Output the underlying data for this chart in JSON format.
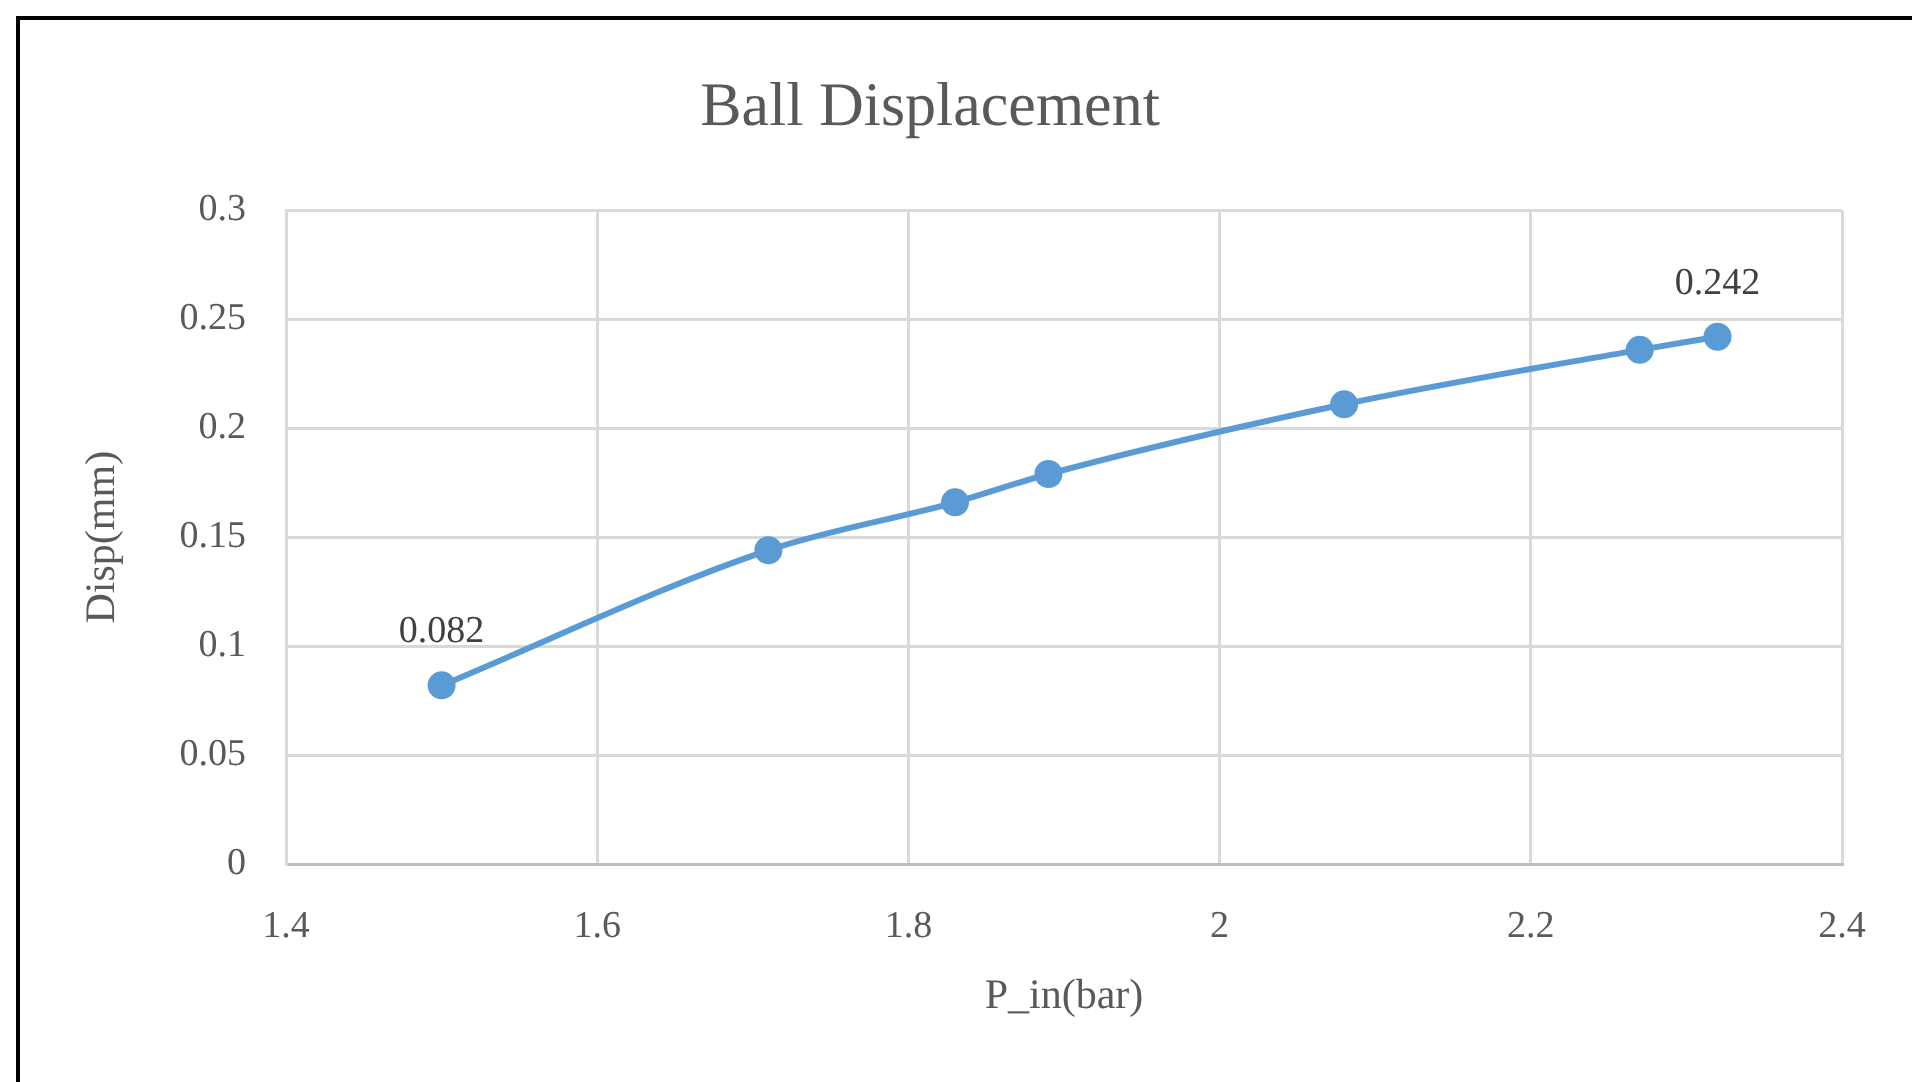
{
  "chart_data": {
    "type": "line",
    "title": "Ball Displacement",
    "xlabel": "P_in(bar)",
    "ylabel": "Disp(mm)",
    "x": [
      1.5,
      1.71,
      1.83,
      1.89,
      2.08,
      2.27,
      2.32
    ],
    "series": [
      {
        "color": "#5b9bd5",
        "values": [
          0.082,
          0.144,
          0.166,
          0.179,
          0.211,
          0.236,
          0.242
        ],
        "value_labels": [
          "0.082",
          null,
          null,
          null,
          null,
          null,
          "0.242"
        ]
      }
    ],
    "xlim": [
      1.4,
      2.4
    ],
    "xticks": [
      1.4,
      1.6,
      1.8,
      2,
      2.2,
      2.4
    ],
    "ylim": [
      0,
      0.3
    ],
    "yticks": [
      0,
      0.05,
      0.1,
      0.15,
      0.2,
      0.25,
      0.3
    ],
    "grid": true,
    "marker": "circle",
    "line_style": "solid"
  }
}
